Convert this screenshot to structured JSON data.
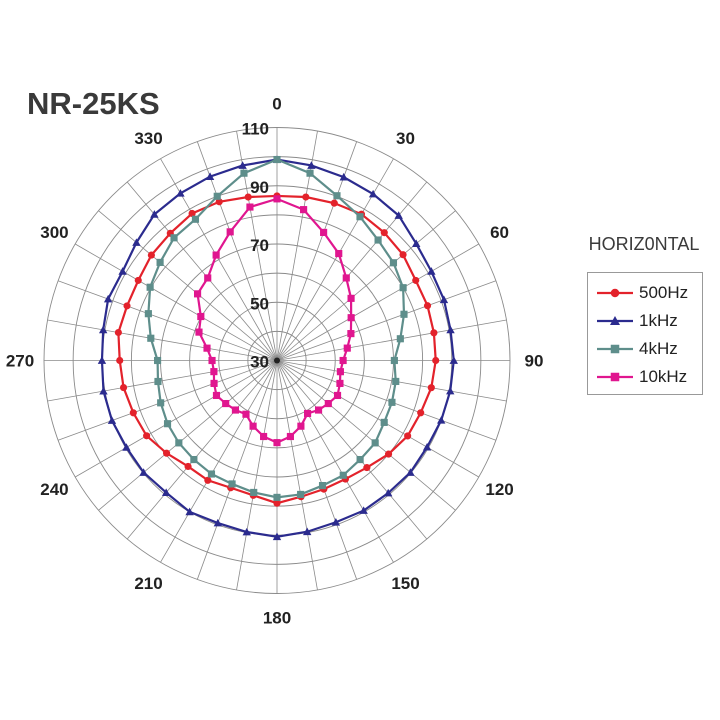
{
  "chart_data": {
    "type": "polar-line",
    "title": "NR-25KS",
    "legend_title": "HORIZ0NTAL",
    "legend_position": "right",
    "angle_unit": "degrees",
    "angles": [
      0,
      10,
      20,
      30,
      40,
      50,
      60,
      70,
      80,
      90,
      100,
      110,
      120,
      130,
      140,
      150,
      160,
      170,
      180,
      190,
      200,
      210,
      220,
      230,
      240,
      250,
      260,
      270,
      280,
      290,
      300,
      310,
      320,
      330,
      340,
      350
    ],
    "angle_tick_labels": [
      "0",
      "30",
      "60",
      "90",
      "120",
      "150",
      "180",
      "210",
      "240",
      "270",
      "300",
      "330"
    ],
    "radial_range": [
      30,
      110
    ],
    "radial_tick_labels": [
      "30",
      "50",
      "70",
      "90",
      "110"
    ],
    "grid": true,
    "series": [
      {
        "name": "500Hz",
        "color": "#e3222b",
        "marker": "circle",
        "values": [
          86.5,
          87,
          87.5,
          88,
          87.3,
          86.5,
          85,
          85,
          84.7,
          84.5,
          83.8,
          82.5,
          81.8,
          80,
          78,
          77,
          77,
          77.5,
          79,
          77,
          76.5,
          77.5,
          77.5,
          79.5,
          81.7,
          82.5,
          83.5,
          84,
          85.3,
          84.8,
          85,
          86.3,
          87,
          88.3,
          88,
          87
        ]
      },
      {
        "name": "1kHz",
        "color": "#2b2b8e",
        "marker": "triangle",
        "values": [
          99,
          98,
          97,
          96,
          95,
          92.4,
          91.2,
          91,
          90.5,
          90.7,
          90.4,
          90,
          89.5,
          89.8,
          89.4,
          89.5,
          89.1,
          89.7,
          90.5,
          89.8,
          89.4,
          90,
          89.2,
          89.8,
          89.7,
          90.3,
          90.5,
          90.1,
          90.6,
          91.7,
          91.2,
          93,
          95.5,
          96.3,
          97.2,
          98
        ]
      },
      {
        "name": "4kHz",
        "color": "#5e8e8b",
        "marker": "square",
        "values": [
          99,
          95.3,
          90.2,
          87,
          84,
          82.2,
          80,
          76.4,
          73,
          70.3,
          71.4,
          72,
          72.5,
          74,
          74.4,
          75.5,
          75.7,
          76.7,
          77,
          76,
          75.1,
          75,
          74.4,
          74,
          73.4,
          72.5,
          71.5,
          71,
          74,
          77,
          80.3,
          82.4,
          85,
          86,
          90,
          95.3
        ]
      },
      {
        "name": "10kHz",
        "color": "#e0168f",
        "marker": "square",
        "values": [
          85.5,
          82.6,
          76.8,
          72.4,
          67,
          63.2,
          59.4,
          57,
          54.5,
          52.7,
          52.1,
          53,
          54,
          53,
          52.2,
          51,
          54,
          56.5,
          58.2,
          56.5,
          54,
          51.3,
          52.2,
          53,
          54,
          53,
          52,
          52.3,
          54.4,
          58.5,
          60.2,
          65.6,
          67,
          71.8,
          77,
          83.5
        ]
      }
    ]
  }
}
